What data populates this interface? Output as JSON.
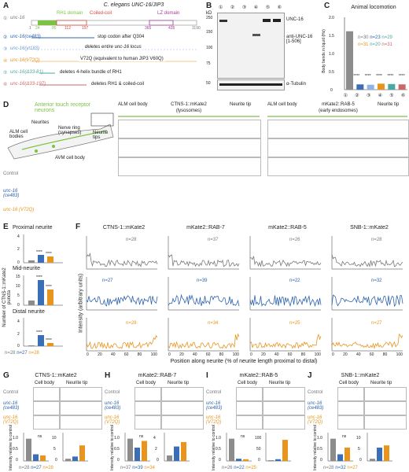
{
  "panel_A": {
    "letter": "A",
    "title": "C. elegans UNC-16/JIP3",
    "domains": {
      "rh1": "RH1 domain",
      "coiled": "Coiled-coil",
      "lz": "LZ domain"
    },
    "positions": [
      "1",
      "24",
      "85",
      "112",
      "197",
      "365",
      "435",
      "1190"
    ],
    "alleles": [
      {
        "num": "①",
        "name": "unc-16",
        "note": ""
      },
      {
        "num": "②",
        "name": "unc-16(ce483)",
        "note": "stop codon after Q304"
      },
      {
        "num": "③",
        "name": "unc-16(yt183)",
        "note": "deletes entire unc-16 locus"
      },
      {
        "num": "④",
        "name": "unc-16(V72Q)",
        "note": "V72Q (equivalent to human JIP3 V60Q)"
      },
      {
        "num": "⑤",
        "name": "unc-16(Δ33-81)",
        "note": "deletes 4-helix bundle of RH1"
      },
      {
        "num": "⑥",
        "name": "unc-16(Δ33-197)",
        "note": "deletes RH1 & coiled-coil"
      }
    ]
  },
  "panel_B": {
    "letter": "B",
    "kd": "kD",
    "lanes": [
      "①",
      "②",
      "③",
      "④",
      "⑤",
      "⑥"
    ],
    "markers": [
      "250",
      "150",
      "100",
      "75",
      "50"
    ],
    "bands": [
      "UNC-16",
      "anti-UNC-16 [1-506]",
      "α-Tubulin"
    ]
  },
  "panel_C": {
    "letter": "C",
    "title": "Animal locomotion",
    "ylabel": "Body bends in liquid (Hz)",
    "yticks": [
      "0",
      "0.5",
      "1.0",
      "1.5",
      "2.0"
    ],
    "xticks": [
      "①",
      "②",
      "③",
      "④",
      "⑤",
      "⑥"
    ],
    "stars": [
      "****",
      "****",
      "****",
      "****",
      "****"
    ],
    "n_row1": [
      "n=30",
      "n=23",
      "n=29"
    ],
    "n_row2": [
      "n=31",
      "n=20",
      "n=31"
    ]
  },
  "chart_data": {
    "type": "bar",
    "categories": [
      "①",
      "②",
      "③",
      "④",
      "⑤",
      "⑥"
    ],
    "values": [
      1.65,
      0.15,
      0.14,
      0.17,
      0.16,
      0.15
    ],
    "colors": [
      "#8c8c8c",
      "#3a6fb7",
      "#8fb3e3",
      "#e8951f",
      "#4aa9a4",
      "#c96a6a"
    ],
    "title": "Animal locomotion",
    "ylabel": "Body bends in liquid (Hz)",
    "ylim": [
      0,
      2.0
    ]
  },
  "panel_D": {
    "letter": "D",
    "neurons": "Anterior touch receptor neurons",
    "labels": {
      "neurites": "Neurites",
      "alm": "ALM cell bodies",
      "nerve": "Nerve ring (synapses)",
      "tips": "Neurite tips",
      "avm": "AVM cell body"
    },
    "left_header": {
      "cell": "ALM cell body",
      "marker": "CTNS-1::mKate2",
      "sub": "(lysosomes)",
      "tip": "Neurite tip"
    },
    "right_header": {
      "cell": "ALM cell body",
      "marker": "mKate2::RAB-5",
      "sub": "(early endosomes)",
      "tip": "Neurite tip"
    },
    "rows": [
      "Control",
      "unc-16 (ce483)",
      "unc-16 (V72Q)"
    ]
  },
  "panel_E": {
    "letter": "E",
    "sections": [
      "Proximal neurite",
      "Mid-neurite",
      "Distal neurite"
    ],
    "ylabel": "Number of CTNS-1::mKate2 puncta",
    "ticks": [
      [
        "0",
        "2",
        "4"
      ],
      [
        "0",
        "5",
        "10",
        "15"
      ],
      [
        "0",
        "2",
        "4"
      ]
    ],
    "stars": "****",
    "n": [
      "n=28",
      "n=27",
      "n=28"
    ]
  },
  "panel_F": {
    "letter": "F",
    "columns": [
      "CTNS-1::mKate2",
      "mKate2::RAB-7",
      "mKate2::RAB-5",
      "SNB-1::mKate2"
    ],
    "n_gray": [
      "n=28",
      "n=37",
      "n=26",
      "n=28"
    ],
    "n_blue": [
      "n=27",
      "n=39",
      "n=22",
      "n=32"
    ],
    "n_orange": [
      "n=28",
      "n=34",
      "n=25",
      "n=27"
    ],
    "yticks": [
      "0",
      "5",
      "10"
    ],
    "xticks": [
      "0",
      "20",
      "40",
      "60",
      "80",
      "100"
    ],
    "ylabel": "Intensity (arbitrary units)",
    "xlabel": "Position along neurite (% of neurite length proximal to distal)"
  },
  "panels_GJ": [
    {
      "letter": "G",
      "marker": "CTNS-1::mKate2",
      "n": [
        "n=28",
        "n=27",
        "n=28"
      ],
      "ticks": [
        "0",
        "0.5",
        "1.0"
      ],
      "tick2": [
        "0",
        "5",
        "10"
      ]
    },
    {
      "letter": "H",
      "marker": "mKate2::RAB-7",
      "n": [
        "n=37",
        "n=39",
        "n=34"
      ],
      "ticks": [
        "0",
        "0.5",
        "1.0"
      ],
      "tick2": [
        "0",
        "2",
        "4"
      ]
    },
    {
      "letter": "I",
      "marker": "mKate2::RAB-5",
      "n": [
        "n=26",
        "n=22",
        "n=25"
      ],
      "ticks": [
        "0",
        "0.5",
        "1.0"
      ],
      "tick2": [
        "0",
        "50",
        "100"
      ]
    },
    {
      "letter": "J",
      "marker": "SNB-1::mKate2",
      "n": [
        "n=28",
        "n=32",
        "n=27"
      ],
      "ticks": [
        "0",
        "0.5",
        "1.0"
      ],
      "tick2": [
        "0",
        "5",
        "10"
      ]
    }
  ],
  "gj_labels": {
    "cell": "Cell body",
    "tip": "Neurite tip",
    "ylabel": "Intensity relative to control",
    "rows": [
      "Control",
      "unc-16 (ce483)",
      "unc-16 (V72Q)"
    ],
    "ns": "ns"
  }
}
